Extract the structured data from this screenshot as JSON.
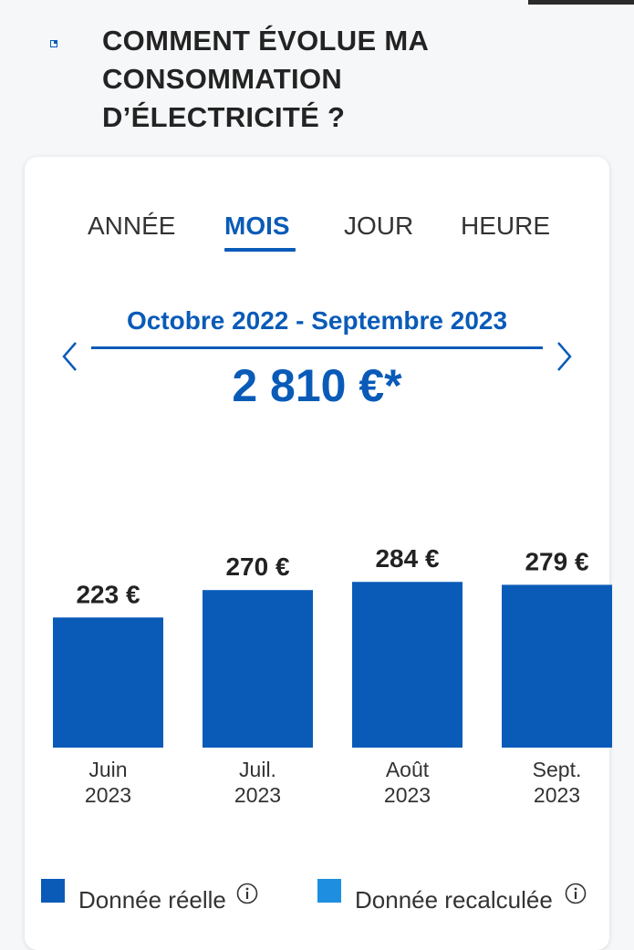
{
  "header": {
    "title_line1": "COMMENT ÉVOLUE MA",
    "title_line2": "CONSOMMATION",
    "title_line3": "D’ÉLECTRICITÉ ?"
  },
  "tabs": [
    {
      "label": "ANNÉE",
      "active": false
    },
    {
      "label": "MOIS",
      "active": true
    },
    {
      "label": "JOUR",
      "active": false
    },
    {
      "label": "HEURE",
      "active": false
    }
  ],
  "period": {
    "label": "Octobre 2022 - Septembre 2023",
    "total": "2 810 €*"
  },
  "colors": {
    "accent": "#0a5bb8",
    "bar_real": "#0a5bb8",
    "bar_recalc": "#1e8fe0"
  },
  "chart_data": {
    "type": "bar",
    "categories": [
      "Juin 2023",
      "Juil. 2023",
      "Août 2023",
      "Sept. 2023"
    ],
    "category_lines": [
      [
        "Juin",
        "2023"
      ],
      [
        "Juil.",
        "2023"
      ],
      [
        "Août",
        "2023"
      ],
      [
        "Sept.",
        "2023"
      ]
    ],
    "values": [
      223,
      270,
      284,
      279
    ],
    "value_labels": [
      "223 €",
      "270 €",
      "284 €",
      "279 €"
    ],
    "unit": "€"
  },
  "legend": {
    "items": [
      {
        "label": "Donnée réelle",
        "color": "#0a5bb8",
        "info_icon": "info-icon"
      },
      {
        "label": "Donnée recalculée",
        "color": "#1e8fe0",
        "info_icon": "info-icon"
      }
    ]
  }
}
